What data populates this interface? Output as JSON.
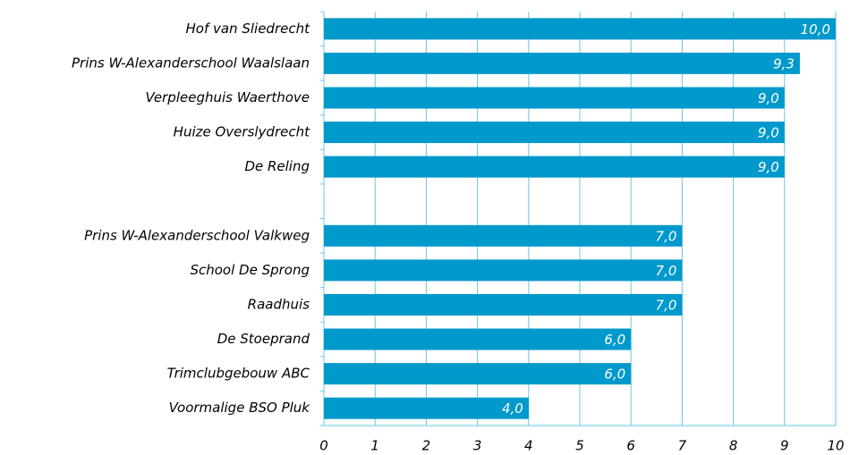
{
  "chart_data": {
    "type": "barh",
    "categories": [
      "Hof van Sliedrecht",
      "Prins W-Alexanderschool Waalslaan",
      "Verpleeghuis Waerthove",
      "Huize Overslydrecht",
      "De Reling",
      null,
      "Prins W-Alexanderschool Valkweg",
      "School De Sprong",
      "Raadhuis",
      "De Stoeprand",
      "Trimclubgebouw ABC",
      "Voormalige BSO Pluk"
    ],
    "values": [
      10,
      9.3,
      9,
      9,
      9,
      null,
      7,
      7,
      7,
      6,
      6,
      4
    ],
    "value_labels": [
      "10,0",
      "9,3",
      "9,0",
      "9,0",
      "9,0",
      null,
      "7,0",
      "7,0",
      "7,0",
      "6,0",
      "6,0",
      "4,0"
    ],
    "color": "#0099cc",
    "xlim": [
      0,
      10
    ],
    "xticks": [
      0,
      1,
      2,
      3,
      4,
      5,
      6,
      7,
      8,
      9,
      10
    ],
    "grid": true
  }
}
